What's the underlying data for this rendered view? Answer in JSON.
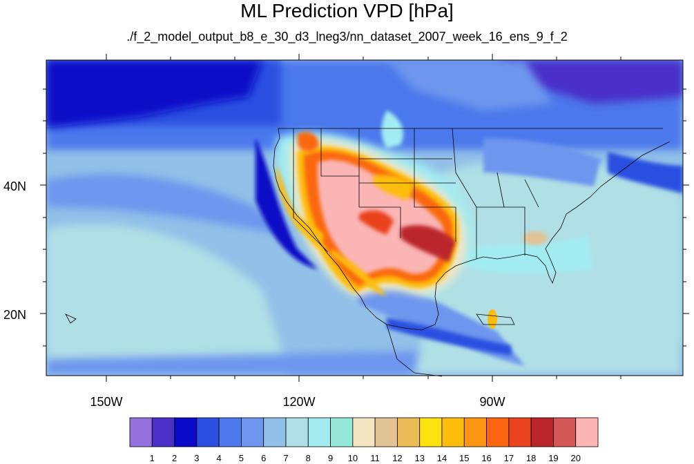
{
  "title": "ML Prediction VPD [hPa]",
  "subtitle": "./f_2_model_output_b8_e_30_d3_lneg3/nn_dataset_2007_week_16_ens_9_f_2",
  "axes": {
    "lon_ticks": [
      {
        "label": "150W",
        "value": -150
      },
      {
        "label": "120W",
        "value": -120
      },
      {
        "label": "90W",
        "value": -90
      }
    ],
    "lat_ticks": [
      {
        "label": "40N",
        "value": 40
      },
      {
        "label": "20N",
        "value": 20
      }
    ]
  },
  "colorbar": {
    "labels": [
      "1",
      "2",
      "3",
      "4",
      "5",
      "6",
      "7",
      "8",
      "9",
      "10",
      "11",
      "12",
      "13",
      "14",
      "15",
      "16",
      "17",
      "18",
      "19",
      "20"
    ],
    "colors": [
      "#9370db",
      "#4a2fc8",
      "#0a0ac8",
      "#2b4fe0",
      "#4c78ec",
      "#6e96ee",
      "#92c0e8",
      "#b0dfe6",
      "#a2ecf1",
      "#95e8d9",
      "#f3e5c2",
      "#e2c395",
      "#ebbb55",
      "#fde20f",
      "#fdbd0c",
      "#fb9615",
      "#fa6710",
      "#e9431f",
      "#bb262a",
      "#d45858",
      "#fbb5b5"
    ]
  },
  "chart_data": {
    "type": "heatmap",
    "title": "ML Prediction VPD [hPa]",
    "subtitle": "./f_2_model_output_b8_e_30_d3_lneg3/nn_dataset_2007_week_16_ens_9_f_2",
    "lon_range": [
      -160,
      -61
    ],
    "lat_range": [
      11,
      59
    ],
    "levels": [
      1,
      2,
      3,
      4,
      5,
      6,
      7,
      8,
      9,
      10,
      11,
      12,
      13,
      14,
      15,
      16,
      17,
      18,
      19,
      20
    ],
    "units": "hPa"
  }
}
